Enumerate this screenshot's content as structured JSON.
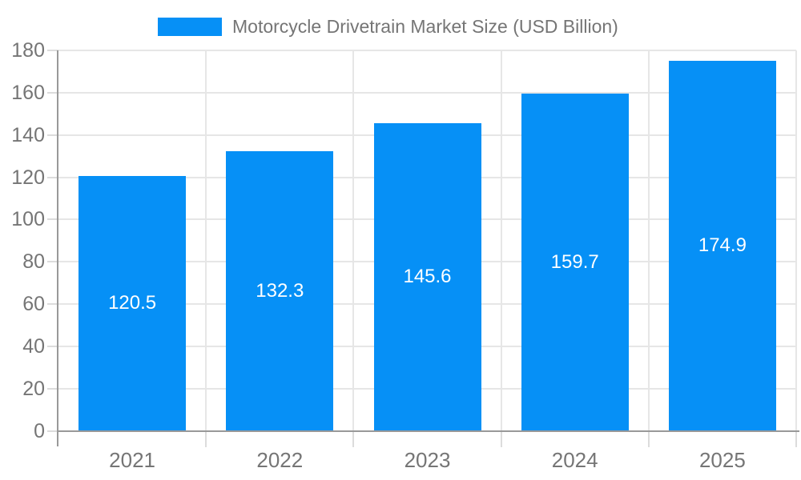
{
  "chart_data": {
    "type": "bar",
    "title": "Motorcycle Drivetrain Market Size (USD Billion)",
    "legend_position": "top",
    "categories": [
      "2021",
      "2022",
      "2023",
      "2024",
      "2025"
    ],
    "series": [
      {
        "name": "Motorcycle Drivetrain Market Size (USD Billion)",
        "values": [
          120.5,
          132.3,
          145.6,
          159.7,
          174.9
        ]
      }
    ],
    "value_labels": [
      "120.5",
      "132.3",
      "145.6",
      "159.7",
      "174.9"
    ],
    "xlabel": "",
    "ylabel": "",
    "ylim": [
      0,
      180
    ],
    "yticks": [
      0,
      20,
      40,
      60,
      80,
      100,
      120,
      140,
      160,
      180
    ],
    "grid": true,
    "colors": {
      "bar": "#0690F6",
      "value_label": "#FFFFFF",
      "axis": "#999999",
      "gridline": "#E6E6E6",
      "minor_tick": "#DCDCDC",
      "text": "#757575",
      "background": "#FFFFFF"
    }
  }
}
